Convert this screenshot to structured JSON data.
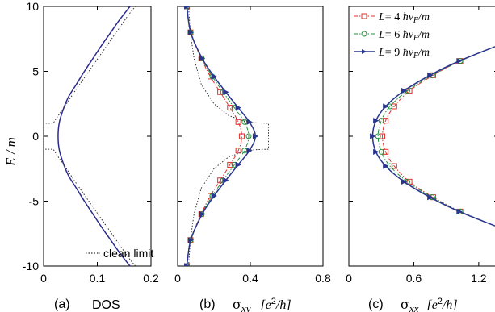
{
  "chart_data": [
    {
      "type": "line",
      "panel": "(a)",
      "xlabel": "DOS",
      "ylabel": "E / m",
      "xlim": [
        0,
        0.2
      ],
      "ylim": [
        -10,
        10
      ],
      "xticks": [
        0,
        0.1,
        0.2
      ],
      "yticks": [
        -10,
        -5,
        0,
        5,
        10
      ],
      "xtick_labels": [
        "0",
        "0.1",
        "0.2"
      ],
      "ytick_labels": [
        "-10",
        "-5",
        "0",
        "5",
        "10"
      ],
      "series": [
        {
          "name": "",
          "color": "#2b2b8f",
          "style": "solid",
          "points": [
            [
              0.161,
              -10
            ],
            [
              0.142,
              -9
            ],
            [
              0.125,
              -8
            ],
            [
              0.108,
              -7
            ],
            [
              0.092,
              -6
            ],
            [
              0.076,
              -5
            ],
            [
              0.061,
              -4
            ],
            [
              0.046,
              -3
            ],
            [
              0.036,
              -2
            ],
            [
              0.029,
              -1
            ],
            [
              0.027,
              0
            ],
            [
              0.029,
              1
            ],
            [
              0.036,
              2
            ],
            [
              0.046,
              3
            ],
            [
              0.061,
              4
            ],
            [
              0.076,
              5
            ],
            [
              0.092,
              6
            ],
            [
              0.108,
              7
            ],
            [
              0.125,
              8
            ],
            [
              0.142,
              9
            ],
            [
              0.161,
              10
            ]
          ]
        },
        {
          "name": "clean limit",
          "color": "#333333",
          "style": "dotted",
          "points": [
            [
              0.171,
              -10
            ],
            [
              0.159,
              -9.4
            ],
            [
              0.142,
              -8.4
            ],
            [
              0.125,
              -7.4
            ],
            [
              0.108,
              -6.4
            ],
            [
              0.091,
              -5.4
            ],
            [
              0.074,
              -4.4
            ],
            [
              0.057,
              -3.4
            ],
            [
              0.041,
              -2.4
            ],
            [
              0.024,
              -1.4
            ],
            [
              0.018,
              -1.0
            ],
            [
              0.0,
              -1.0
            ],
            [
              0.0,
              1.0
            ],
            [
              0.018,
              1.0
            ],
            [
              0.024,
              1.4
            ],
            [
              0.041,
              2.4
            ],
            [
              0.057,
              3.4
            ],
            [
              0.074,
              4.4
            ],
            [
              0.091,
              5.4
            ],
            [
              0.108,
              6.4
            ],
            [
              0.125,
              7.4
            ],
            [
              0.142,
              8.4
            ],
            [
              0.159,
              9.4
            ],
            [
              0.171,
              10
            ]
          ]
        }
      ],
      "legend": {
        "location": "bottom-right",
        "entries": [
          "clean limit"
        ]
      }
    },
    {
      "type": "line",
      "panel": "(b)",
      "xlabel_symbol": "σ",
      "xlabel_sub": "xy",
      "xlabel_unit_pre": "[e",
      "xlabel_unit_sup": "2",
      "xlabel_unit_post": "/h]",
      "xlim": [
        0,
        0.8
      ],
      "ylim": [
        -10,
        10
      ],
      "xticks": [
        0,
        0.4,
        0.8
      ],
      "xtick_labels": [
        "0",
        "0.4",
        "0.8"
      ],
      "series": [
        {
          "name": "L= 4 ħv_F/m",
          "color": "#e0302c",
          "style": "dashdot",
          "marker": "square",
          "points": [
            [
              0.051,
              -10
            ],
            [
              0.071,
              -8
            ],
            [
              0.13,
              -6
            ],
            [
              0.18,
              -4.6
            ],
            [
              0.234,
              -3.4
            ],
            [
              0.288,
              -2.2
            ],
            [
              0.334,
              -1.1
            ],
            [
              0.353,
              0
            ],
            [
              0.334,
              1.1
            ],
            [
              0.288,
              2.2
            ],
            [
              0.234,
              3.4
            ],
            [
              0.18,
              4.6
            ],
            [
              0.13,
              6
            ],
            [
              0.071,
              8
            ],
            [
              0.051,
              10
            ]
          ]
        },
        {
          "name": "L= 6 ħv_F/m",
          "color": "#1f8f3c",
          "style": "dashdot",
          "marker": "circle",
          "points": [
            [
              0.051,
              -10
            ],
            [
              0.071,
              -8
            ],
            [
              0.133,
              -6
            ],
            [
              0.191,
              -4.6
            ],
            [
              0.25,
              -3.4
            ],
            [
              0.312,
              -2.2
            ],
            [
              0.368,
              -1.1
            ],
            [
              0.391,
              0
            ],
            [
              0.368,
              1.1
            ],
            [
              0.312,
              2.2
            ],
            [
              0.25,
              3.4
            ],
            [
              0.191,
              4.6
            ],
            [
              0.133,
              6
            ],
            [
              0.071,
              8
            ],
            [
              0.051,
              10
            ]
          ]
        },
        {
          "name": "L= 9 ħv_F/m",
          "color": "#2a3590",
          "style": "solid",
          "marker": "triangle-right",
          "points": [
            [
              0.051,
              -10
            ],
            [
              0.072,
              -8
            ],
            [
              0.135,
              -6
            ],
            [
              0.2,
              -4.6
            ],
            [
              0.265,
              -3.4
            ],
            [
              0.333,
              -2.2
            ],
            [
              0.395,
              -1.1
            ],
            [
              0.428,
              0
            ],
            [
              0.395,
              1.1
            ],
            [
              0.333,
              2.2
            ],
            [
              0.265,
              3.4
            ],
            [
              0.2,
              4.6
            ],
            [
              0.135,
              6
            ],
            [
              0.072,
              8
            ],
            [
              0.051,
              10
            ]
          ]
        },
        {
          "name": "clean limit",
          "color": "#333333",
          "style": "dotted",
          "points": [
            [
              0.06,
              -10
            ],
            [
              0.07,
              -8
            ],
            [
              0.09,
              -6
            ],
            [
              0.13,
              -4
            ],
            [
              0.2,
              -2.5
            ],
            [
              0.28,
              -1.6
            ],
            [
              0.36,
              -1.2
            ],
            [
              0.4,
              -1.05
            ],
            [
              0.5,
              -1.0
            ],
            [
              0.5,
              1.0
            ],
            [
              0.4,
              1.05
            ],
            [
              0.36,
              1.2
            ],
            [
              0.28,
              1.6
            ],
            [
              0.2,
              2.5
            ],
            [
              0.13,
              4
            ],
            [
              0.09,
              6
            ],
            [
              0.07,
              8
            ],
            [
              0.06,
              10
            ]
          ]
        }
      ],
      "legend": {
        "location": "top-right",
        "entries": [
          "L= 4 ħv_F/m",
          "L= 6 ħv_F/m",
          "L= 9 ħv_F/m"
        ]
      }
    },
    {
      "type": "line",
      "panel": "(c)",
      "xlabel_symbol": "σ",
      "xlabel_sub": "xx",
      "xlabel_unit_pre": "[e",
      "xlabel_unit_sup": "2",
      "xlabel_unit_post": "/h]",
      "xlim": [
        0,
        1.38
      ],
      "ylim": [
        -10,
        10
      ],
      "xticks": [
        0,
        0.6,
        1.2
      ],
      "xtick_labels": [
        "0",
        "0.6",
        "1.2"
      ],
      "series": [
        {
          "name": "L= 4 ħv_F/m",
          "color": "#e0302c",
          "style": "dashdot",
          "marker": "square",
          "points": [
            [
              1.38,
              -7
            ],
            [
              1.03,
              -5.8
            ],
            [
              0.78,
              -4.7
            ],
            [
              0.56,
              -3.5
            ],
            [
              0.42,
              -2.3
            ],
            [
              0.34,
              -1.2
            ],
            [
              0.31,
              0
            ],
            [
              0.34,
              1.2
            ],
            [
              0.42,
              2.3
            ],
            [
              0.56,
              3.5
            ],
            [
              0.78,
              4.7
            ],
            [
              1.03,
              5.8
            ],
            [
              1.38,
              7
            ]
          ]
        },
        {
          "name": "L= 6 ħv_F/m",
          "color": "#1f8f3c",
          "style": "dashdot",
          "marker": "circle",
          "points": [
            [
              1.38,
              -7
            ],
            [
              1.03,
              -5.8
            ],
            [
              0.77,
              -4.7
            ],
            [
              0.54,
              -3.5
            ],
            [
              0.38,
              -2.3
            ],
            [
              0.3,
              -1.2
            ],
            [
              0.27,
              0
            ],
            [
              0.3,
              1.2
            ],
            [
              0.38,
              2.3
            ],
            [
              0.54,
              3.5
            ],
            [
              0.77,
              4.7
            ],
            [
              1.03,
              5.8
            ],
            [
              1.38,
              7
            ]
          ]
        },
        {
          "name": "L= 9 ħv_F/m",
          "color": "#2a3590",
          "style": "solid",
          "marker": "triangle-right",
          "points": [
            [
              1.38,
              -7
            ],
            [
              1.02,
              -5.8
            ],
            [
              0.75,
              -4.7
            ],
            [
              0.51,
              -3.5
            ],
            [
              0.34,
              -2.3
            ],
            [
              0.25,
              -1.2
            ],
            [
              0.22,
              0
            ],
            [
              0.25,
              1.2
            ],
            [
              0.34,
              2.3
            ],
            [
              0.51,
              3.5
            ],
            [
              0.75,
              4.7
            ],
            [
              1.02,
              5.8
            ],
            [
              1.38,
              7
            ]
          ]
        }
      ]
    }
  ],
  "legend_entries": [
    {
      "prefix": "L",
      "eq": "= ",
      "value": "4",
      "unit_pre": " ħv",
      "unit_sub": "F",
      "unit_post": "/m"
    },
    {
      "prefix": "L",
      "eq": "= ",
      "value": "6",
      "unit_pre": " ħv",
      "unit_sub": "F",
      "unit_post": "/m"
    },
    {
      "prefix": "L",
      "eq": "= ",
      "value": "9",
      "unit_pre": " ħv",
      "unit_sub": "F",
      "unit_post": "/m"
    }
  ],
  "clean_limit_label": "clean limit",
  "captions": {
    "a": "(a)",
    "b": "(b)",
    "c": "(c)",
    "dos": "DOS"
  },
  "y_axis_label": {
    "main": "E / m"
  }
}
